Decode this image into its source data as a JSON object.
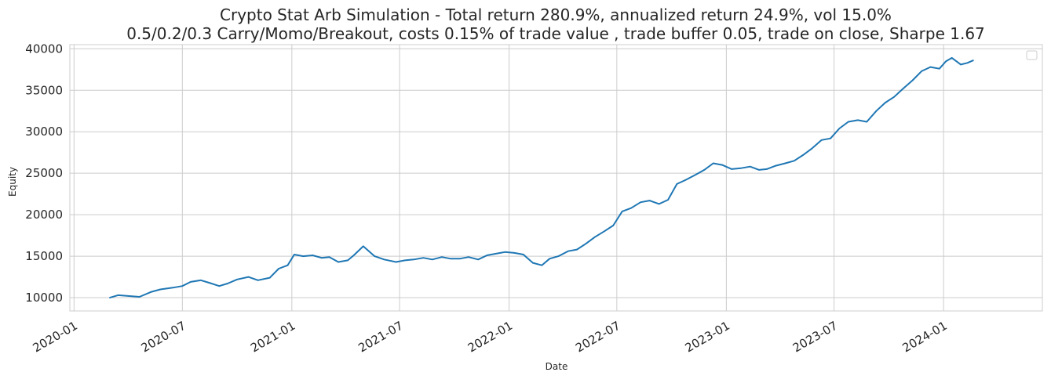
{
  "chart_data": {
    "type": "line",
    "title": [
      "Crypto Stat Arb Simulation - Total return 280.9%, annualized return 24.9%, vol 15.0%",
      "0.5/0.2/0.3 Carry/Momo/Breakout, costs 0.15% of trade value , trade buffer 0.05, trade on close, Sharpe 1.67"
    ],
    "xlabel": "Date",
    "ylabel": "Equity",
    "x_ticks": [
      "2020-01",
      "2020-07",
      "2021-01",
      "2021-07",
      "2022-01",
      "2022-07",
      "2023-01",
      "2023-07",
      "2024-01"
    ],
    "y_ticks": [
      10000,
      15000,
      20000,
      25000,
      30000,
      35000,
      40000
    ],
    "xlim": [
      "2019-12-25",
      "2024-06-15"
    ],
    "ylim": [
      8400,
      40500
    ],
    "grid": true,
    "legend": "top-right (empty)",
    "line_color": "#1f77b4",
    "series": [
      {
        "x": [
          "2020-03-01",
          "2020-03-15",
          "2020-04-01",
          "2020-04-20",
          "2020-05-10",
          "2020-05-25",
          "2020-06-15",
          "2020-07-01",
          "2020-07-15",
          "2020-08-01",
          "2020-08-15",
          "2020-09-01",
          "2020-09-15",
          "2020-10-01",
          "2020-10-20",
          "2020-11-05",
          "2020-11-25",
          "2020-12-10",
          "2020-12-25",
          "2021-01-05",
          "2021-01-20",
          "2021-02-05",
          "2021-02-20",
          "2021-03-05",
          "2021-03-20",
          "2021-04-05",
          "2021-04-15",
          "2021-05-01",
          "2021-05-20",
          "2021-06-05",
          "2021-06-25",
          "2021-07-10",
          "2021-07-25",
          "2021-08-10",
          "2021-08-25",
          "2021-09-10",
          "2021-09-25",
          "2021-10-10",
          "2021-10-25",
          "2021-11-10",
          "2021-11-25",
          "2021-12-10",
          "2021-12-25",
          "2022-01-10",
          "2022-01-25",
          "2022-02-10",
          "2022-02-25",
          "2022-03-10",
          "2022-03-25",
          "2022-04-10",
          "2022-04-25",
          "2022-05-10",
          "2022-05-25",
          "2022-06-10",
          "2022-06-25",
          "2022-07-10",
          "2022-07-25",
          "2022-08-10",
          "2022-08-25",
          "2022-09-10",
          "2022-09-25",
          "2022-10-10",
          "2022-10-25",
          "2022-11-10",
          "2022-11-25",
          "2022-12-10",
          "2022-12-25",
          "2023-01-10",
          "2023-01-25",
          "2023-02-10",
          "2023-02-25",
          "2023-03-10",
          "2023-03-25",
          "2023-04-10",
          "2023-04-25",
          "2023-05-10",
          "2023-05-25",
          "2023-06-10",
          "2023-06-25",
          "2023-07-10",
          "2023-07-25",
          "2023-08-10",
          "2023-08-25",
          "2023-09-10",
          "2023-09-25",
          "2023-10-10",
          "2023-10-25",
          "2023-11-10",
          "2023-11-25",
          "2023-12-10",
          "2023-12-25",
          "2024-01-05",
          "2024-01-15",
          "2024-01-30",
          "2024-02-10",
          "2024-02-20"
        ],
        "y": [
          10000,
          10300,
          10200,
          10100,
          10700,
          11000,
          11200,
          11400,
          11900,
          12100,
          11800,
          11400,
          11700,
          12200,
          12500,
          12100,
          12400,
          13500,
          13900,
          15200,
          15000,
          15100,
          14800,
          14900,
          14300,
          14500,
          15100,
          16200,
          15000,
          14600,
          14300,
          14500,
          14600,
          14800,
          14600,
          14900,
          14700,
          14700,
          14900,
          14600,
          15100,
          15300,
          15500,
          15400,
          15200,
          14200,
          13900,
          14700,
          15000,
          15600,
          15800,
          16500,
          17300,
          18000,
          18700,
          20400,
          20800,
          21500,
          21700,
          21300,
          21800,
          23700,
          24200,
          24800,
          25400,
          26200,
          26000,
          25500,
          25600,
          25800,
          25400,
          25500,
          25900,
          26200,
          26500,
          27200,
          28000,
          29000,
          29200,
          30400,
          31200,
          31400,
          31200,
          32500,
          33500,
          34200,
          35200,
          36200,
          37300,
          37800,
          37600,
          38500,
          38900,
          38100,
          38300,
          38600
        ]
      }
    ]
  }
}
